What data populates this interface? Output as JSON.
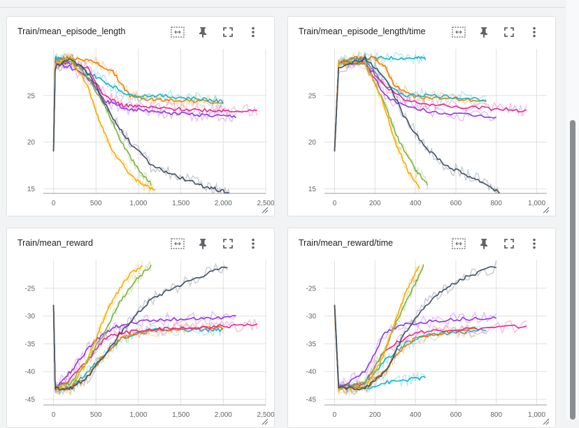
{
  "colors": {
    "orange": "#f57c00",
    "teal": "#12b5cb",
    "pink": "#e52592",
    "purple": "#9334e6",
    "green": "#7cb342",
    "gold": "#f9ab00",
    "slate": "#425066"
  },
  "icons": [
    "fit-domain-icon",
    "pin-icon",
    "fullscreen-icon",
    "more-vert-icon"
  ],
  "cards": [
    {
      "title": "Train/mean_episode_length",
      "chart_data": {
        "type": "line",
        "title": "Train/mean_episode_length",
        "xlim": [
          -120,
          2500
        ],
        "ylim": [
          14.5,
          30
        ],
        "xticks": [
          0,
          500,
          1000,
          1500,
          2000,
          2500
        ],
        "xtick_labels": [
          "0",
          "500",
          "1,000",
          "1,500",
          "2,000",
          "2,500"
        ],
        "yticks": [
          15,
          20,
          25
        ],
        "ytick_labels": [
          "15",
          "20",
          "25"
        ],
        "grid": true,
        "series": [
          {
            "color": "orange",
            "x": [
              0,
              20,
              100,
              300,
              500,
              700,
              900,
              1100,
              1300,
              1500,
              1700,
              2000
            ],
            "y": [
              19,
              28.5,
              29,
              29,
              28.5,
              27.5,
              25,
              24.6,
              24.5,
              24.5,
              24.4,
              24.2
            ]
          },
          {
            "color": "teal",
            "x": [
              0,
              20,
              100,
              300,
              500,
              700,
              900,
              1200,
              1500,
              1800,
              2000
            ],
            "y": [
              20,
              29,
              29,
              28,
              27,
              26,
              25,
              25,
              24.8,
              24.6,
              24.3
            ]
          },
          {
            "color": "pink",
            "x": [
              0,
              20,
              150,
              400,
              600,
              800,
              1000,
              1300,
              1600,
              1900,
              2100,
              2400
            ],
            "y": [
              19,
              28.5,
              28.5,
              28,
              25,
              24,
              23.8,
              23.6,
              23.5,
              23.4,
              23.4,
              23.3
            ]
          },
          {
            "color": "purple",
            "x": [
              0,
              20,
              200,
              400,
              600,
              800,
              1000,
              1300,
              1600,
              1900,
              2150
            ],
            "y": [
              19,
              28.5,
              28,
              27,
              24.5,
              23.7,
              23.5,
              23.2,
              23,
              22.8,
              22.7
            ]
          },
          {
            "color": "green",
            "x": [
              0,
              20,
              200,
              400,
              600,
              800,
              1000,
              1150
            ],
            "y": [
              19,
              28.5,
              29,
              27,
              24,
              20,
              17,
              15.5
            ]
          },
          {
            "color": "gold",
            "x": [
              0,
              20,
              200,
              400,
              550,
              700,
              900,
              1050,
              1200
            ],
            "y": [
              19,
              28.5,
              29,
              26,
              22,
              19,
              16.5,
              15.5,
              14.8
            ]
          },
          {
            "color": "slate",
            "x": [
              0,
              20,
              200,
              450,
              700,
              900,
              1150,
              1400,
              1700,
              1900,
              2100
            ],
            "y": [
              19,
              28,
              29,
              27,
              22.5,
              20,
              17.5,
              16.5,
              15.5,
              15,
              14.4
            ]
          }
        ]
      }
    },
    {
      "title": "Train/mean_episode_length/time",
      "chart_data": {
        "type": "line",
        "title": "Train/mean_episode_length/time",
        "xlim": [
          -50,
          1050
        ],
        "ylim": [
          14.5,
          30
        ],
        "xticks": [
          0,
          200,
          400,
          600,
          800,
          1000
        ],
        "xtick_labels": [
          "0",
          "200",
          "400",
          "600",
          "800",
          "1,000"
        ],
        "yticks": [
          15,
          20,
          25
        ],
        "ytick_labels": [
          "15",
          "20",
          "25"
        ],
        "grid": true,
        "series": [
          {
            "color": "teal",
            "x": [
              0,
              20,
              100,
              200,
              300,
              400,
              450
            ],
            "y": [
              19,
              28.5,
              29,
              29,
              29,
              29,
              29
            ]
          },
          {
            "color": "orange",
            "x": [
              0,
              20,
              100,
              200,
              250,
              300,
              380,
              450,
              600,
              750
            ],
            "y": [
              19,
              28.5,
              29,
              29,
              28,
              26,
              25,
              24.8,
              24.6,
              24.4
            ]
          },
          {
            "color": "teal",
            "x": [
              0,
              20,
              150,
              250,
              350,
              450,
              600,
              750
            ],
            "y": [
              19,
              28.5,
              29,
              26,
              25,
              25,
              24.8,
              24.5
            ]
          },
          {
            "color": "pink",
            "x": [
              0,
              20,
              150,
              250,
              350,
              500,
              700,
              850,
              950
            ],
            "y": [
              19,
              28.5,
              28.5,
              26,
              24.5,
              24,
              23.7,
              23.5,
              23.4
            ]
          },
          {
            "color": "purple",
            "x": [
              0,
              20,
              150,
              250,
              350,
              500,
              650,
              800
            ],
            "y": [
              19,
              28.5,
              28.5,
              25,
              23.8,
              23.2,
              22.9,
              22.7
            ]
          },
          {
            "color": "green",
            "x": [
              0,
              20,
              150,
              250,
              320,
              400,
              460
            ],
            "y": [
              19,
              28.5,
              28.5,
              24,
              20,
              17,
              15.5
            ]
          },
          {
            "color": "gold",
            "x": [
              0,
              20,
              150,
              230,
              300,
              360,
              420
            ],
            "y": [
              19,
              28.5,
              28.5,
              25,
              20,
              17,
              15
            ]
          },
          {
            "color": "slate",
            "x": [
              0,
              20,
              150,
              250,
              350,
              450,
              550,
              650,
              750,
              820
            ],
            "y": [
              19,
              28,
              29,
              27,
              22.5,
              19.5,
              17.5,
              16.5,
              15.5,
              14.5
            ]
          }
        ]
      }
    },
    {
      "title": "Train/mean_reward",
      "chart_data": {
        "type": "line",
        "title": "Train/mean_reward",
        "xlim": [
          -120,
          2500
        ],
        "ylim": [
          -46,
          -20
        ],
        "xticks": [
          0,
          500,
          1000,
          1500,
          2000,
          2500
        ],
        "xtick_labels": [
          "0",
          "500",
          "1,000",
          "1,500",
          "2,000",
          "2,500"
        ],
        "yticks": [
          -45,
          -40,
          -35,
          -30,
          -25
        ],
        "ytick_labels": [
          "-45",
          "-40",
          "-35",
          "-30",
          "-25"
        ],
        "grid": true,
        "series": [
          {
            "color": "teal",
            "x": [
              0,
              20,
              200,
              400,
              600,
              800,
              1000,
              1200,
              1500,
              1800,
              2000
            ],
            "y": [
              -28,
              -43,
              -43,
              -40,
              -37,
              -34,
              -33,
              -32.5,
              -32.5,
              -32.5,
              -32.5
            ]
          },
          {
            "color": "orange",
            "x": [
              0,
              20,
              200,
              400,
              600,
              800,
              1000,
              1300,
              1600,
              2000
            ],
            "y": [
              -28,
              -43,
              -43,
              -41,
              -37,
              -34,
              -33,
              -32.5,
              -32.3,
              -32
            ]
          },
          {
            "color": "pink",
            "x": [
              0,
              20,
              150,
              400,
              600,
              800,
              1100,
              1400,
              1800,
              2100,
              2400
            ],
            "y": [
              -28,
              -43,
              -42,
              -38,
              -34,
              -33,
              -32.5,
              -32.3,
              -32,
              -31.8,
              -31.7
            ]
          },
          {
            "color": "purple",
            "x": [
              0,
              20,
              200,
              400,
              600,
              800,
              1100,
              1500,
              1800,
              2150
            ],
            "y": [
              -28,
              -43,
              -40,
              -36,
              -33,
              -31.5,
              -30.8,
              -30.5,
              -30.3,
              -30.2
            ]
          },
          {
            "color": "green",
            "x": [
              0,
              20,
              200,
              400,
              600,
              800,
              1000,
              1150
            ],
            "y": [
              -28,
              -43,
              -42,
              -38,
              -33,
              -27,
              -23,
              -21
            ]
          },
          {
            "color": "gold",
            "x": [
              0,
              20,
              200,
              400,
              550,
              700,
              900,
              1050
            ],
            "y": [
              -28,
              -43,
              -43,
              -38,
              -32,
              -27,
              -22.5,
              -21
            ]
          },
          {
            "color": "slate",
            "x": [
              0,
              20,
              200,
              400,
              700,
              900,
              1150,
              1400,
              1700,
              2050
            ],
            "y": [
              -28,
              -43,
              -43,
              -41,
              -35,
              -31,
              -27,
              -25,
              -23,
              -21
            ]
          }
        ]
      }
    },
    {
      "title": "Train/mean_reward/time",
      "chart_data": {
        "type": "line",
        "title": "Train/mean_reward/time",
        "xlim": [
          -50,
          1050
        ],
        "ylim": [
          -46,
          -20
        ],
        "xticks": [
          0,
          200,
          400,
          600,
          800,
          1000
        ],
        "xtick_labels": [
          "0",
          "200",
          "400",
          "600",
          "800",
          "1,000"
        ],
        "yticks": [
          -45,
          -40,
          -35,
          -30,
          -25
        ],
        "ytick_labels": [
          "-45",
          "-40",
          "-35",
          "-30",
          "-25"
        ],
        "grid": true,
        "series": [
          {
            "color": "teal",
            "x": [
              0,
              20,
              150,
              250,
              350,
              450
            ],
            "y": [
              -28,
              -42.5,
              -43,
              -42,
              -41.5,
              -41
            ]
          },
          {
            "color": "teal",
            "x": [
              0,
              20,
              150,
              250,
              350,
              450,
              600,
              750
            ],
            "y": [
              -28,
              -43,
              -42,
              -38,
              -35,
              -33.5,
              -33,
              -32.5
            ]
          },
          {
            "color": "orange",
            "x": [
              0,
              20,
              150,
              250,
              300,
              400,
              550,
              700
            ],
            "y": [
              -28,
              -43,
              -43,
              -40,
              -37,
              -34,
              -33,
              -32.5
            ]
          },
          {
            "color": "pink",
            "x": [
              0,
              20,
              150,
              250,
              400,
              550,
              750,
              950
            ],
            "y": [
              -28,
              -43,
              -42,
              -36,
              -33,
              -32.5,
              -32.2,
              -31.8
            ]
          },
          {
            "color": "purple",
            "x": [
              0,
              20,
              150,
              250,
              350,
              500,
              650,
              800
            ],
            "y": [
              -28,
              -43,
              -40,
              -33,
              -31.5,
              -30.8,
              -30.5,
              -30.2
            ]
          },
          {
            "color": "green",
            "x": [
              0,
              20,
              150,
              250,
              320,
              400,
              440
            ],
            "y": [
              -28,
              -43,
              -42,
              -36,
              -30,
              -24,
              -21
            ]
          },
          {
            "color": "gold",
            "x": [
              0,
              20,
              150,
              230,
              300,
              360,
              420
            ],
            "y": [
              -28,
              -43,
              -43,
              -38,
              -31,
              -25,
              -21
            ]
          },
          {
            "color": "slate",
            "x": [
              0,
              20,
              150,
              250,
              350,
              450,
              550,
              650,
              800
            ],
            "y": [
              -28,
              -43,
              -43,
              -40,
              -33,
              -28,
              -25,
              -23,
              -21
            ]
          }
        ]
      }
    }
  ]
}
